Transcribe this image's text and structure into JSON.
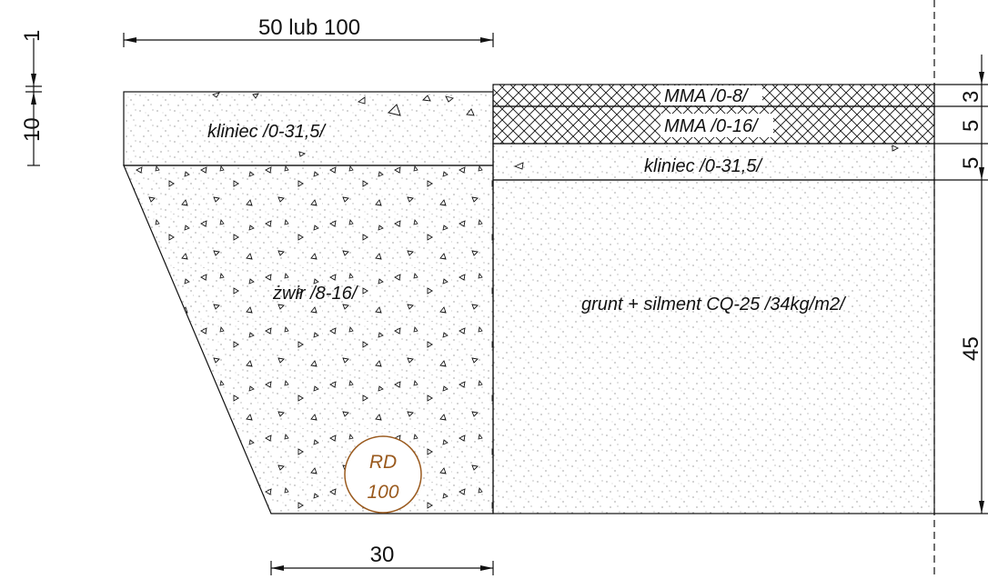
{
  "dimensions": {
    "top_width": "50 lub 100",
    "bottom_width": "30",
    "left_small": "1",
    "left_large": "10",
    "right_mma8": "3",
    "right_mma16": "5",
    "right_kliniec": "5",
    "right_base": "45"
  },
  "layers": {
    "left_top": "kliniec /0-31,5/",
    "left_fill": "żwir /8-16/",
    "mma8": "MMA /0-8/",
    "mma16": "MMA /0-16/",
    "right_kliniec": "kliniec /0-31,5/",
    "base": "grunt + silment CQ-25 /34kg/m2/"
  },
  "badge": {
    "line1": "RD",
    "line2": "100",
    "color": "#9a5a1e"
  }
}
